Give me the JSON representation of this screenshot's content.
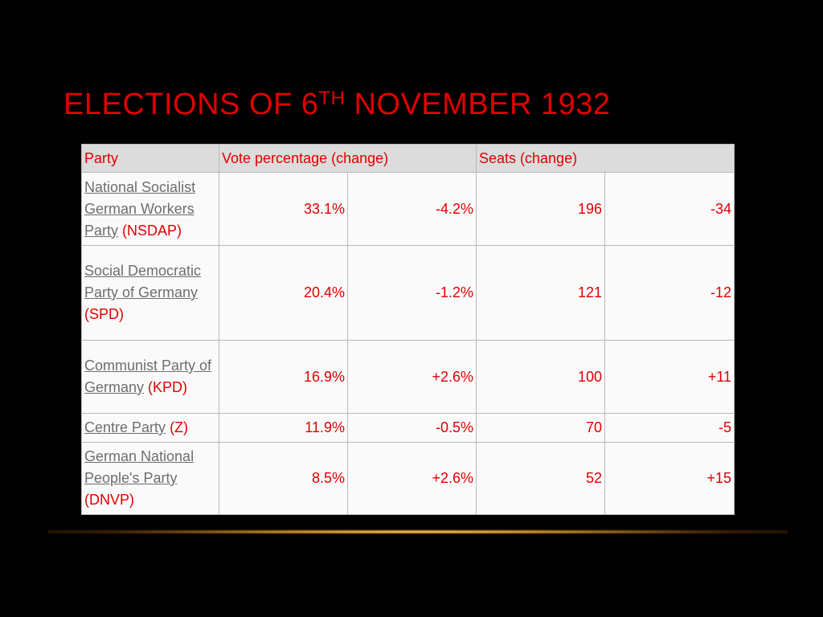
{
  "slide": {
    "title": "Elections of 6",
    "title_sup": "th",
    "title_rest": " November 1932"
  },
  "table": {
    "headers": {
      "party": "Party",
      "vote": "Vote percentage (change)",
      "seats": "Seats (change)"
    },
    "rows": [
      {
        "name": "National Socialist German Workers Party",
        "abbr": "(NSDAP)",
        "vote": "33.1%",
        "vote_change": "-4.2%",
        "seats": "196",
        "seats_change": "-34"
      },
      {
        "name": "Social Democratic Party of Germany",
        "abbr": "(SPD)",
        "vote": "20.4%",
        "vote_change": "-1.2%",
        "seats": "121",
        "seats_change": "-12"
      },
      {
        "name": "Communist Party of Germany",
        "abbr": "(KPD)",
        "vote": "16.9%",
        "vote_change": "+2.6%",
        "seats": "100",
        "seats_change": "+11"
      },
      {
        "name": "Centre Party",
        "abbr": "(Z)",
        "vote": "11.9%",
        "vote_change": "-0.5%",
        "seats": "70",
        "seats_change": "-5"
      },
      {
        "name": "German National People's Party",
        "abbr": "(DNVP)",
        "vote": "8.5%",
        "vote_change": "+2.6%",
        "seats": "52",
        "seats_change": "+15"
      }
    ]
  },
  "colors": {
    "background": "#000000",
    "accent_red": "#e00000",
    "link_gray": "#6e6e6e",
    "header_bg": "#dcdcdc",
    "cell_bg": "#fafafa",
    "glow": "#ffd26e"
  }
}
